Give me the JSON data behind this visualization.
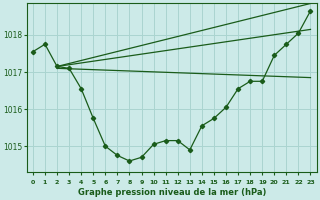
{
  "title": "Graphe pression niveau de la mer (hPa)",
  "background_color": "#cceae8",
  "grid_color": "#aad4d0",
  "line_color": "#1a5c1a",
  "xlim": [
    -0.5,
    23.5
  ],
  "ylim": [
    1014.3,
    1018.85
  ],
  "yticks": [
    1015,
    1016,
    1017,
    1018
  ],
  "xtick_labels": [
    "0",
    "1",
    "2",
    "3",
    "4",
    "5",
    "6",
    "7",
    "8",
    "9",
    "10",
    "11",
    "12",
    "13",
    "14",
    "15",
    "16",
    "17",
    "18",
    "19",
    "20",
    "21",
    "22",
    "23"
  ],
  "main_x": [
    0,
    1,
    2,
    3,
    4,
    5,
    6,
    7,
    8,
    9,
    10,
    11,
    12,
    13,
    14,
    15,
    16,
    17,
    18,
    19,
    20,
    21,
    22,
    23
  ],
  "main_y": [
    1017.55,
    1017.75,
    1017.15,
    1017.1,
    1016.55,
    1015.75,
    1015.0,
    1014.75,
    1014.6,
    1014.7,
    1015.05,
    1015.15,
    1015.15,
    1014.9,
    1015.55,
    1015.75,
    1016.05,
    1016.55,
    1016.75,
    1016.75,
    1017.45,
    1017.75,
    1018.05,
    1018.65
  ],
  "line1_x": [
    2,
    23
  ],
  "line1_y": [
    1017.15,
    1018.85
  ],
  "line2_x": [
    2,
    23
  ],
  "line2_y": [
    1017.15,
    1018.15
  ],
  "line3_x": [
    2,
    23
  ],
  "line3_y": [
    1017.1,
    1016.85
  ]
}
